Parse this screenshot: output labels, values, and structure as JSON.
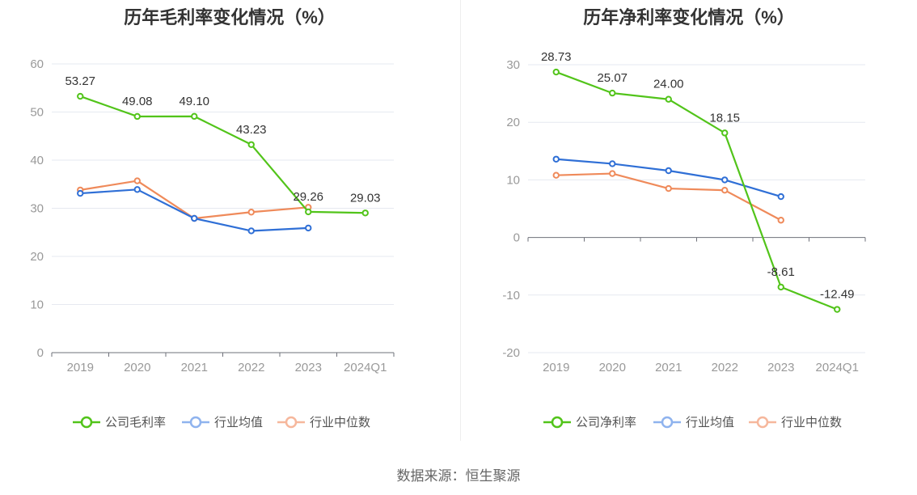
{
  "source_text": "数据来源：恒生聚源",
  "chart_data": [
    {
      "type": "line",
      "title": "历年毛利率变化情况（%）",
      "categories": [
        "2019",
        "2020",
        "2021",
        "2022",
        "2023",
        "2024Q1"
      ],
      "ylim": [
        0,
        60
      ],
      "yticks": [
        0,
        10,
        20,
        30,
        40,
        50,
        60
      ],
      "series": [
        {
          "name": "公司毛利率",
          "color": "#52c41a",
          "values": [
            53.27,
            49.08,
            49.1,
            43.23,
            29.26,
            29.03
          ],
          "labels": [
            "53.27",
            "49.08",
            "49.10",
            "43.23",
            "29.26",
            "29.03"
          ]
        },
        {
          "name": "行业均值",
          "color": "#2f6fd6",
          "values": [
            33.1,
            33.9,
            27.9,
            25.3,
            25.9,
            null
          ]
        },
        {
          "name": "行业中位数",
          "color": "#ef8a5a",
          "values": [
            33.8,
            35.7,
            27.9,
            29.2,
            30.2,
            null
          ]
        }
      ],
      "legend_swatch_colors": [
        "#52c41a",
        "#8fb3ee",
        "#f6b79c"
      ]
    },
    {
      "type": "line",
      "title": "历年净利率变化情况（%）",
      "categories": [
        "2019",
        "2020",
        "2021",
        "2022",
        "2023",
        "2024Q1"
      ],
      "ylim": [
        -20,
        30
      ],
      "yticks": [
        -20,
        -10,
        0,
        10,
        20,
        30
      ],
      "series": [
        {
          "name": "公司净利率",
          "color": "#52c41a",
          "values": [
            28.73,
            25.07,
            24.0,
            18.15,
            -8.61,
            -12.49
          ],
          "labels": [
            "28.73",
            "25.07",
            "24.00",
            "18.15",
            "-8.61",
            "-12.49"
          ]
        },
        {
          "name": "行业均值",
          "color": "#2f6fd6",
          "values": [
            13.6,
            12.8,
            11.6,
            10.0,
            7.1,
            null
          ]
        },
        {
          "name": "行业中位数",
          "color": "#ef8a5a",
          "values": [
            10.8,
            11.1,
            8.5,
            8.2,
            3.0,
            null
          ]
        }
      ],
      "legend_swatch_colors": [
        "#52c41a",
        "#8fb3ee",
        "#f6b79c"
      ]
    }
  ]
}
